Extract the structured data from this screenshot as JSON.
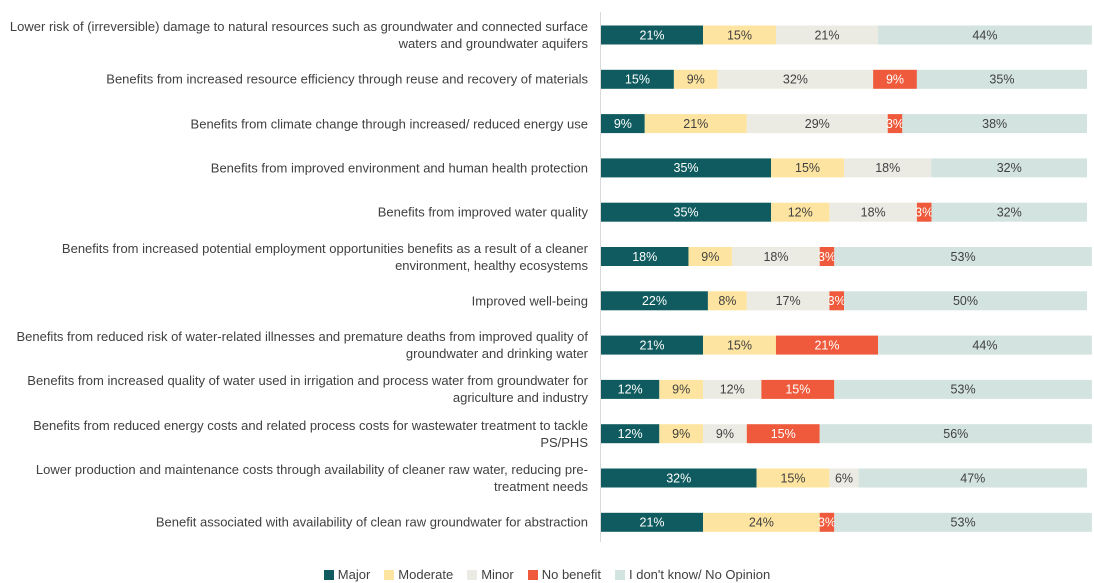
{
  "chart_data": {
    "type": "stacked-bar-horizontal",
    "categories": [
      "Lower risk of (irreversible) damage to natural resources such as groundwater and connected surface waters and groundwater aquifers",
      "Benefits from increased resource efficiency through reuse and recovery of materials",
      "Benefits from climate change through increased/ reduced energy use",
      "Benefits from improved environment and human health protection",
      "Benefits from improved water quality",
      "Benefits from increased potential employment opportunities benefits as a result of a cleaner environment, healthy ecosystems",
      "Improved well-being",
      "Benefits from reduced risk of water-related illnesses and premature deaths from improved quality of groundwater and drinking water",
      "Benefits from increased quality of water used in irrigation and process water from groundwater for agriculture and industry",
      "Benefits from reduced energy costs and related process costs for wastewater treatment to tackle PS/PHS",
      "Lower production and maintenance costs through availability of cleaner raw water, reducing pre-treatment needs",
      "Benefit associated with availability of clean raw groundwater for abstraction"
    ],
    "series": [
      {
        "name": "Major",
        "color": "#0f5b5f",
        "label_color": "#ffffff",
        "values": [
          21,
          15,
          9,
          35,
          35,
          18,
          22,
          21,
          12,
          12,
          32,
          21
        ],
        "value_labels": [
          "21%",
          "15%",
          "9%",
          "35%",
          "35%",
          "18%",
          "22%",
          "21%",
          "12%",
          "12%",
          "32%",
          "21%"
        ]
      },
      {
        "name": "Moderate",
        "color": "#fde4a0",
        "label_color": "#404040",
        "values": [
          15,
          9,
          21,
          15,
          12,
          9,
          8,
          15,
          9,
          9,
          15,
          24
        ],
        "value_labels": [
          "15%",
          "9%",
          "21%",
          "15%",
          "12%",
          "9%",
          "8%",
          "15%",
          "9%",
          "9%",
          "15%",
          "24%"
        ]
      },
      {
        "name": "Minor",
        "color": "#ecebe3",
        "label_color": "#404040",
        "values": [
          21,
          32,
          29,
          18,
          18,
          18,
          17,
          null,
          12,
          9,
          6,
          null
        ],
        "value_labels": [
          "21%",
          "32%",
          "29%",
          "18%",
          "18%",
          "18%",
          "17%",
          null,
          "12%",
          "9%",
          "6%",
          null
        ]
      },
      {
        "name": "No benefit",
        "color": "#ee5a3b",
        "label_color": "#ffffff",
        "values": [
          null,
          9,
          3,
          null,
          3,
          3,
          3,
          21,
          15,
          15,
          null,
          3
        ],
        "value_labels": [
          null,
          "9%",
          "3%",
          null,
          "3%",
          "3%",
          "3%",
          "21%",
          "15%",
          "15%",
          null,
          "3%"
        ]
      },
      {
        "name": "I don't know/ No Opinion",
        "color": "#d3e3df",
        "label_color": "#404040",
        "values": [
          44,
          35,
          38,
          32,
          32,
          53,
          50,
          44,
          53,
          56,
          47,
          53
        ],
        "value_labels": [
          "44%",
          "35%",
          "38%",
          "32%",
          "32%",
          "53%",
          "50%",
          "44%",
          "53%",
          "56%",
          "47%",
          "53%"
        ]
      }
    ],
    "legend": "bottom"
  }
}
